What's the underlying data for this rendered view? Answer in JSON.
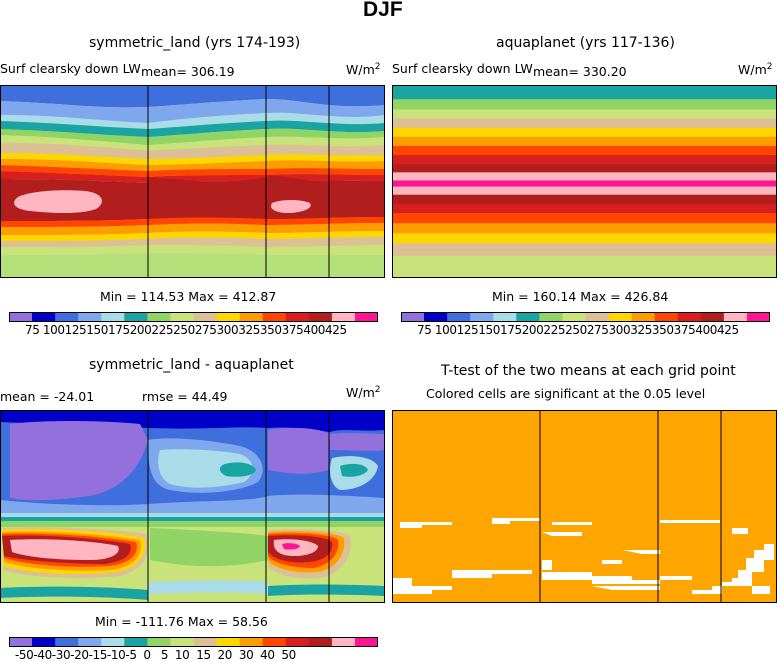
{
  "figure": {
    "title": "DJF"
  },
  "panels": {
    "top_left": {
      "title": "symmetric_land (yrs 174-193)",
      "variable": "Surf clearsky down LW",
      "mean_label": "mean=  306.19",
      "units": "W/m",
      "units_sup": "2",
      "minmax": "Min = 114.53  Max = 412.87"
    },
    "top_right": {
      "title": "aquaplanet (yrs 117-136)",
      "variable": "Surf clearsky down LW",
      "mean_label": "mean=  330.20",
      "units": "W/m",
      "units_sup": "2",
      "minmax": "Min = 160.14  Max = 426.84"
    },
    "bottom_left": {
      "title": "symmetric_land - aquaplanet",
      "mean_label": "mean = -24.01",
      "rmse_label": "rmse =  44.49",
      "units": "W/m",
      "units_sup": "2",
      "minmax": "Min = -111.76  Max =  58.56"
    },
    "bottom_right": {
      "title": "T-test of the two means at each grid point",
      "subtitle": "Colored cells are significant at the 0.05 level"
    }
  },
  "colorbars": {
    "field": {
      "labels_text": "75 100125150175200225250275300325350375400425",
      "levels": [
        75,
        100,
        125,
        150,
        175,
        200,
        225,
        250,
        275,
        300,
        325,
        350,
        375,
        400,
        425
      ],
      "colors": [
        "#9370db",
        "#0000c8",
        "#3f6fdd",
        "#7fa7ee",
        "#a8dce8",
        "#1aa3a3",
        "#8fd464",
        "#c9e27a",
        "#ddbf96",
        "#ffd700",
        "#ff9c00",
        "#ff4500",
        "#d81e1e",
        "#b21e1e",
        "#ffb6c1",
        "#ff1493"
      ]
    },
    "diff": {
      "labels_text": "-50-40-30-20-15-10-5  0   5  10  15  20  30  40  50",
      "levels": [
        -50,
        -40,
        -30,
        -20,
        -15,
        -10,
        -5,
        0,
        5,
        10,
        15,
        20,
        30,
        40,
        50
      ],
      "colors": [
        "#9370db",
        "#0000c8",
        "#3f6fdd",
        "#7fa7ee",
        "#a8dce8",
        "#1aa3a3",
        "#8fd464",
        "#c9e27a",
        "#ddbf96",
        "#ffd700",
        "#ff9c00",
        "#ff4500",
        "#d81e1e",
        "#b21e1e",
        "#ffb6c1",
        "#ff1493"
      ]
    },
    "ttest_color": "#ffa500"
  },
  "chart_data": [
    {
      "type": "heatmap",
      "title": "symmetric_land (yrs 174-193)",
      "variable": "Surf clearsky down LW",
      "units": "W/m2",
      "mean": 306.19,
      "min": 114.53,
      "max": 412.87,
      "continent_boundaries_lon_fraction": [
        0.38,
        0.68,
        0.84
      ]
    },
    {
      "type": "heatmap",
      "title": "aquaplanet (yrs 117-136)",
      "variable": "Surf clearsky down LW",
      "units": "W/m2",
      "mean": 330.2,
      "min": 160.14,
      "max": 426.84,
      "zonal_bands_north_to_south": [
        175,
        200,
        225,
        250,
        275,
        300,
        325,
        350,
        375,
        400,
        425,
        400,
        375,
        350,
        325,
        300,
        275,
        250,
        225
      ]
    },
    {
      "type": "heatmap",
      "title": "symmetric_land - aquaplanet",
      "units": "W/m2",
      "mean": -24.01,
      "rmse": 44.49,
      "min": -111.76,
      "max": 58.56
    },
    {
      "type": "heatmap",
      "title": "T-test of the two means at each grid point",
      "description": "Colored cells are significant at the 0.05 level"
    }
  ]
}
